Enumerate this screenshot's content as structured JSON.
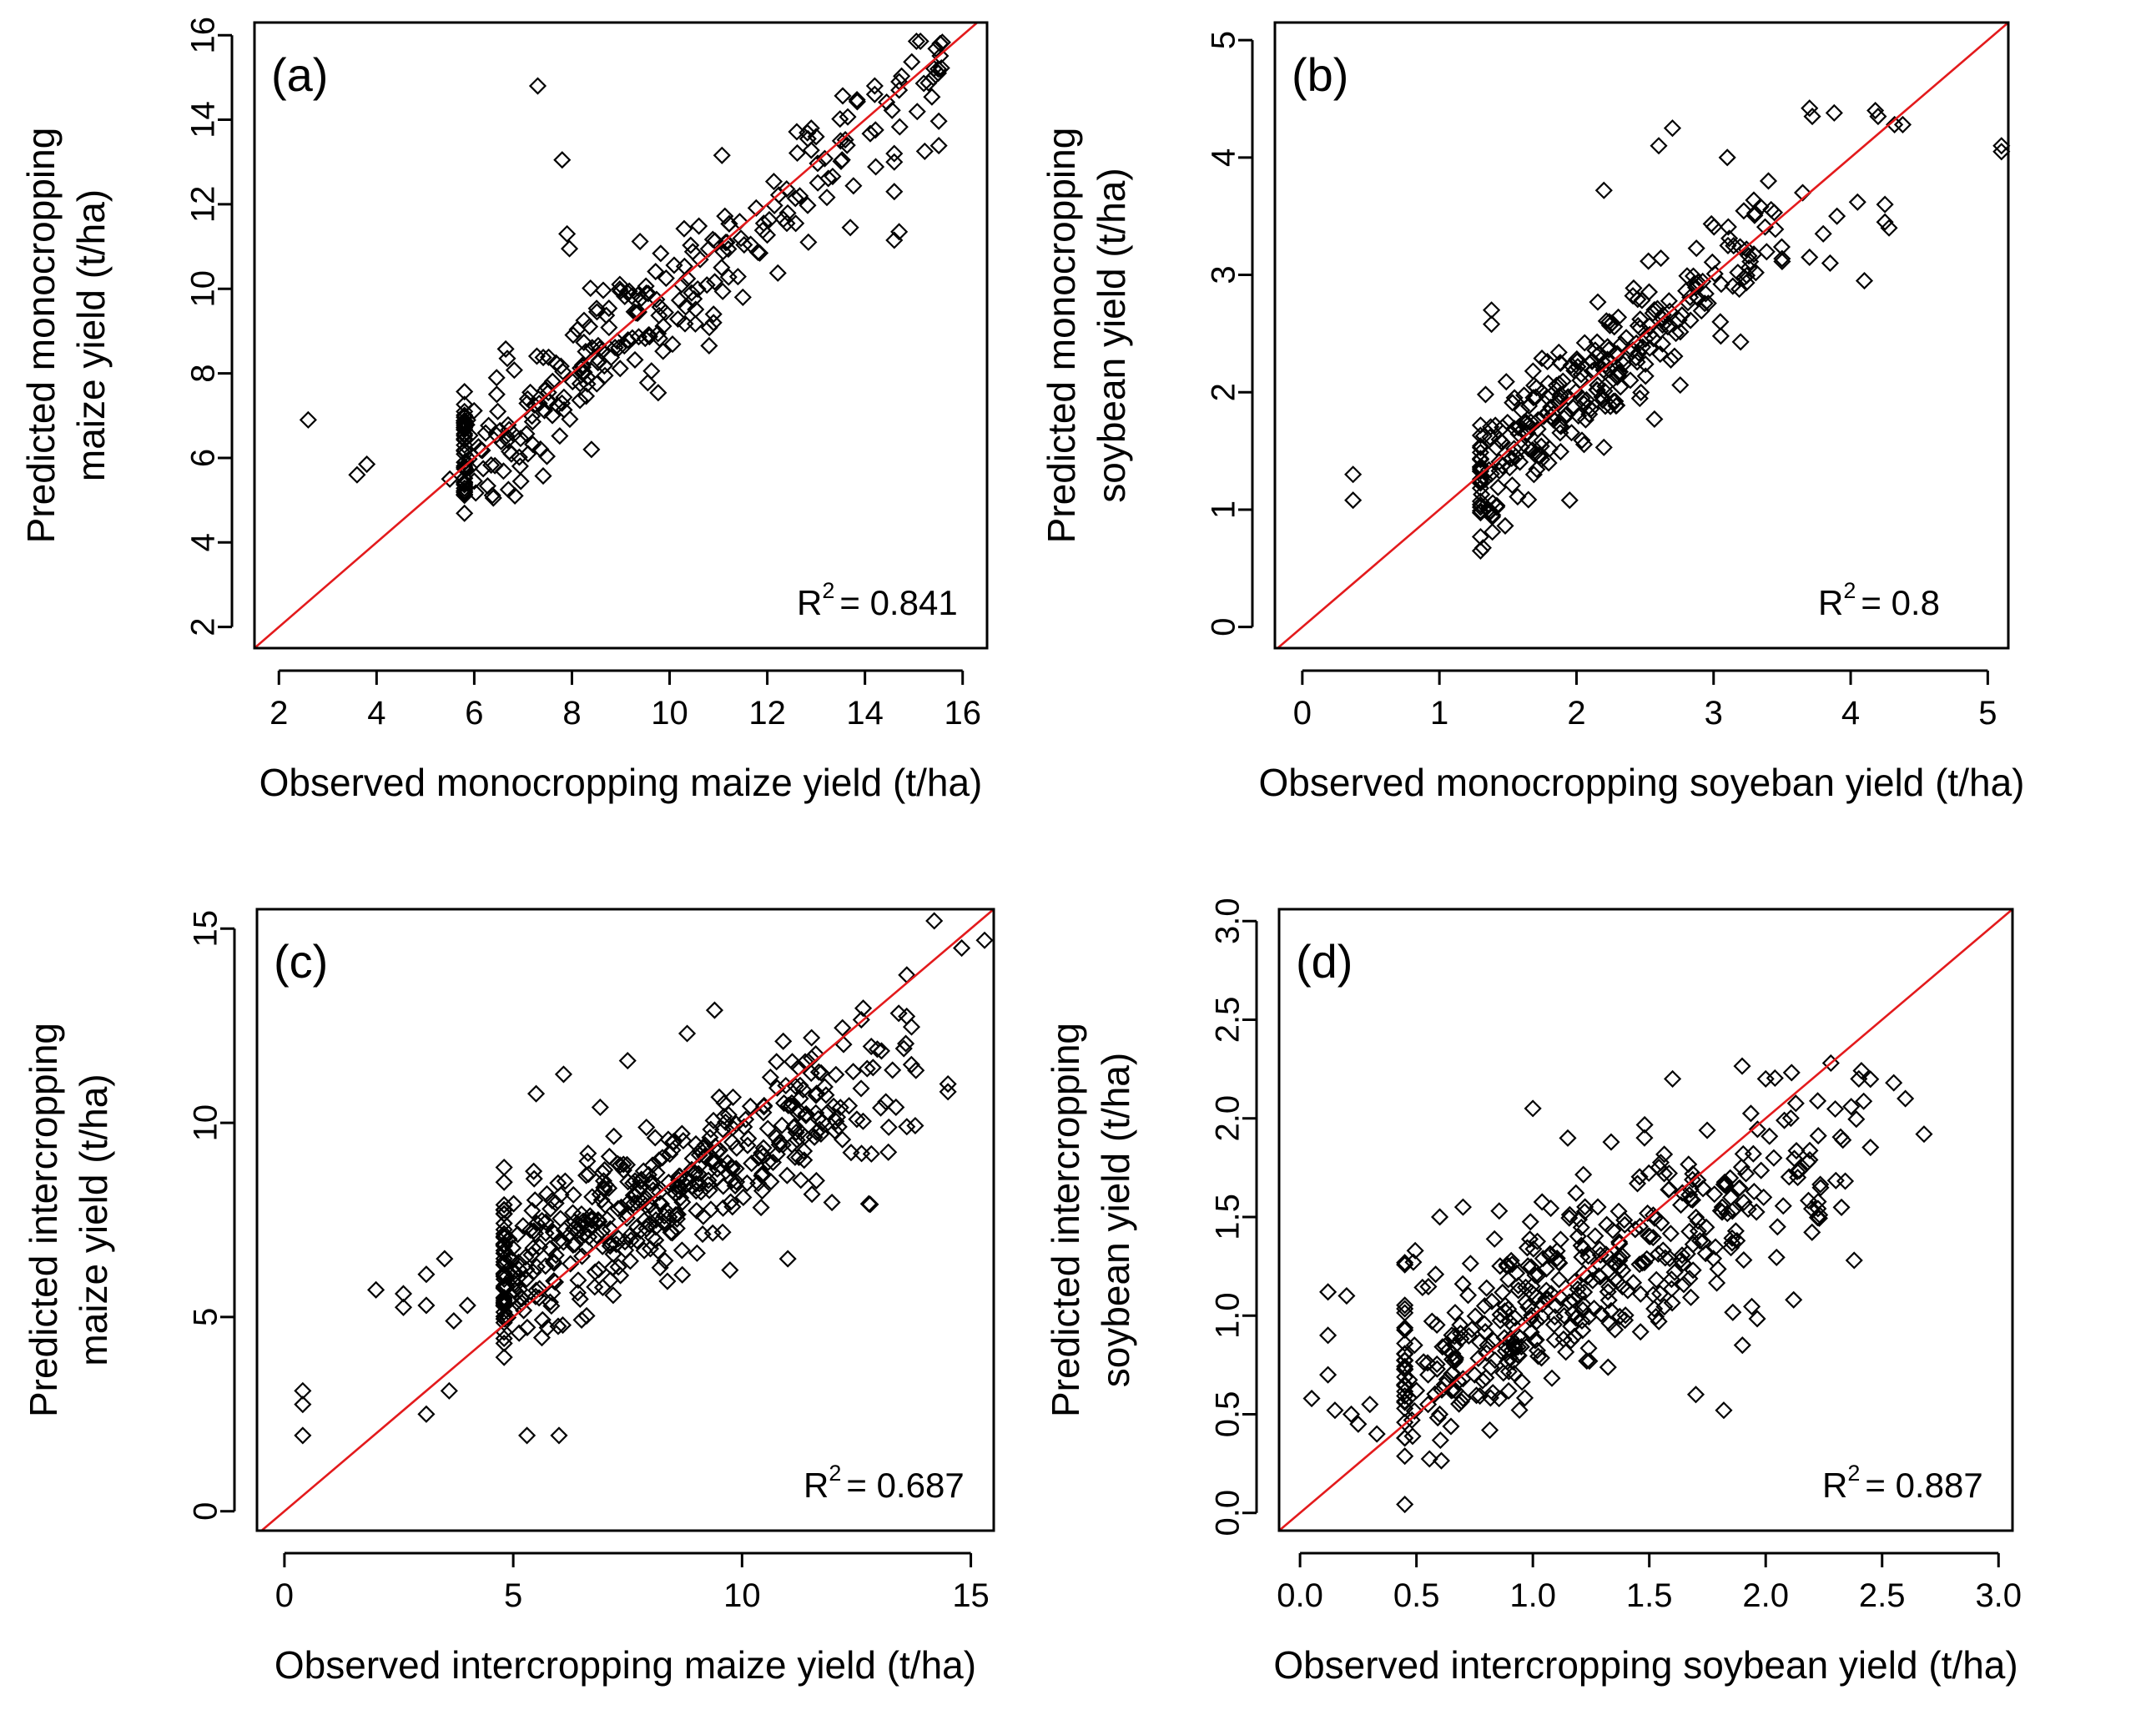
{
  "chart_data": [
    {
      "type": "scatter",
      "panel_label": "(a)",
      "xlabel": "Observed monocropping maize yield (t/ha)",
      "ylabel": [
        "Predicted monocropping",
        "maize yield (t/ha)"
      ],
      "xlim": [
        1.5,
        16.5
      ],
      "ylim": [
        1.5,
        16.3
      ],
      "xticks": [
        2,
        4,
        6,
        8,
        10,
        12,
        14,
        16
      ],
      "yticks": [
        2,
        4,
        6,
        8,
        10,
        12,
        14,
        16
      ],
      "xtick_labels": [
        "2",
        "4",
        "6",
        "8",
        "10",
        "12",
        "14",
        "16"
      ],
      "ytick_labels": [
        "2",
        "4",
        "6",
        "8",
        "10",
        "12",
        "14",
        "16"
      ],
      "r2_text": "R",
      "r2_sup": "2",
      "r2_value": "= 0.841",
      "cloud": {
        "seed": 11,
        "n": 300,
        "xmin": 5.8,
        "xmax": 15.6,
        "xmode": 8.2,
        "slope": 0.96,
        "intercept": 0.35,
        "sd": 0.75
      },
      "points": [
        [
          2.6,
          6.9
        ],
        [
          3.6,
          5.6
        ],
        [
          3.8,
          5.85
        ],
        [
          7.3,
          14.8
        ],
        [
          7.8,
          13.05
        ],
        [
          7.9,
          11.3
        ],
        [
          7.95,
          10.95
        ],
        [
          5.5,
          5.5
        ],
        [
          6.0,
          5.45
        ],
        [
          6.7,
          5.25
        ],
        [
          8.4,
          6.2
        ],
        [
          13.7,
          11.45
        ],
        [
          14.6,
          11.15
        ],
        [
          14.7,
          11.35
        ],
        [
          14.6,
          12.3
        ],
        [
          14.6,
          13.0
        ],
        [
          14.6,
          13.2
        ],
        [
          14.2,
          14.6
        ],
        [
          14.2,
          14.8
        ],
        [
          14.7,
          14.7
        ],
        [
          14.7,
          14.9
        ],
        [
          15.4,
          15.0
        ],
        [
          15.5,
          15.2
        ],
        [
          15.5,
          15.1
        ],
        [
          12.9,
          13.8
        ],
        [
          13.0,
          13.6
        ],
        [
          13.5,
          13.5
        ],
        [
          10.9,
          9.2
        ],
        [
          10.9,
          9.4
        ],
        [
          11.5,
          9.8
        ]
      ]
    },
    {
      "type": "scatter",
      "panel_label": "(b)",
      "xlabel": "Observed monocropping soyeban yield (t/ha)",
      "ylabel": [
        "Predicted monocropping",
        "soybean yield (t/ha)"
      ],
      "xlim": [
        -0.2,
        5.15
      ],
      "ylim": [
        -0.18,
        5.15
      ],
      "xticks": [
        0,
        1,
        2,
        3,
        4,
        5
      ],
      "yticks": [
        0,
        1,
        2,
        3,
        4,
        5
      ],
      "xtick_labels": [
        "0",
        "1",
        "2",
        "3",
        "4",
        "5"
      ],
      "ytick_labels": [
        "0",
        "1",
        "2",
        "3",
        "4",
        "5"
      ],
      "r2_text": "R",
      "r2_sup": "2",
      "r2_value": "= 0.8",
      "cloud": {
        "seed": 23,
        "n": 300,
        "xmin": 1.3,
        "xmax": 3.5,
        "xmode": 1.9,
        "slope": 0.97,
        "intercept": 0.05,
        "sd": 0.26
      },
      "points": [
        [
          0.37,
          1.3
        ],
        [
          0.37,
          1.08
        ],
        [
          1.37,
          0.98
        ],
        [
          1.95,
          1.08
        ],
        [
          1.38,
          2.7
        ],
        [
          1.38,
          2.58
        ],
        [
          2.2,
          3.72
        ],
        [
          2.7,
          4.25
        ],
        [
          2.6,
          4.1
        ],
        [
          3.7,
          4.42
        ],
        [
          3.72,
          4.35
        ],
        [
          3.88,
          4.38
        ],
        [
          4.18,
          4.4
        ],
        [
          4.2,
          4.35
        ],
        [
          4.32,
          4.28
        ],
        [
          4.38,
          4.28
        ],
        [
          5.1,
          4.1
        ],
        [
          5.1,
          4.05
        ],
        [
          3.65,
          3.7
        ],
        [
          3.7,
          3.15
        ],
        [
          3.85,
          3.1
        ],
        [
          4.1,
          2.95
        ],
        [
          4.25,
          3.6
        ],
        [
          4.25,
          3.45
        ],
        [
          4.28,
          3.4
        ],
        [
          4.05,
          3.62
        ],
        [
          3.8,
          3.35
        ],
        [
          3.9,
          3.5
        ],
        [
          3.4,
          3.8
        ],
        [
          3.1,
          4.0
        ]
      ]
    },
    {
      "type": "scatter",
      "panel_label": "(c)",
      "xlabel": "Observed intercropping maize yield (t/ha)",
      "ylabel": [
        "Predicted intercropping",
        "maize yield (t/ha)"
      ],
      "xlim": [
        -0.6,
        15.5
      ],
      "ylim": [
        -0.5,
        15.5
      ],
      "xticks": [
        0,
        5,
        10,
        15
      ],
      "yticks": [
        0,
        5,
        10,
        15
      ],
      "xtick_labels": [
        "0",
        "5",
        "10",
        "15"
      ],
      "ytick_labels": [
        "0",
        "5",
        "10",
        "15"
      ],
      "r2_text": "R",
      "r2_sup": "2",
      "r2_value": "= 0.687",
      "cloud": {
        "seed": 37,
        "n": 480,
        "xmin": 4.8,
        "xmax": 13.8,
        "xmode": 7.6,
        "slope": 0.62,
        "intercept": 3.1,
        "sd": 1.0
      },
      "points": [
        [
          0.4,
          3.1
        ],
        [
          0.4,
          2.75
        ],
        [
          0.4,
          1.95
        ],
        [
          2.0,
          5.7
        ],
        [
          2.6,
          5.6
        ],
        [
          2.6,
          5.25
        ],
        [
          3.1,
          6.1
        ],
        [
          3.5,
          6.5
        ],
        [
          3.1,
          5.3
        ],
        [
          3.1,
          2.5
        ],
        [
          3.6,
          3.1
        ],
        [
          3.7,
          4.9
        ],
        [
          4.0,
          5.3
        ],
        [
          5.3,
          1.95
        ],
        [
          6.0,
          1.95
        ],
        [
          5.5,
          10.75
        ],
        [
          6.1,
          11.25
        ],
        [
          6.9,
          10.4
        ],
        [
          7.5,
          11.6
        ],
        [
          8.8,
          12.3
        ],
        [
          9.4,
          12.9
        ],
        [
          10.9,
          12.1
        ],
        [
          14.2,
          15.2
        ],
        [
          14.8,
          14.5
        ],
        [
          15.3,
          14.7
        ],
        [
          14.5,
          11.0
        ],
        [
          14.5,
          10.8
        ],
        [
          13.6,
          9.9
        ],
        [
          12.8,
          7.9
        ],
        [
          11.0,
          6.5
        ]
      ]
    },
    {
      "type": "scatter",
      "panel_label": "(d)",
      "xlabel": "Observed intercropping soybean yield (t/ha)",
      "ylabel": [
        "Predicted intercropping",
        "soybean yield (t/ha)"
      ],
      "xlim": [
        -0.09,
        3.06
      ],
      "ylim": [
        -0.09,
        3.06
      ],
      "xticks": [
        0.0,
        0.5,
        1.0,
        1.5,
        2.0,
        2.5,
        3.0
      ],
      "yticks": [
        0.0,
        0.5,
        1.0,
        1.5,
        2.0,
        2.5,
        3.0
      ],
      "xtick_labels": [
        "0.0",
        "0.5",
        "1.0",
        "1.5",
        "2.0",
        "2.5",
        "3.0"
      ],
      "ytick_labels": [
        "0.0",
        "0.5",
        "1.0",
        "1.5",
        "2.0",
        "2.5",
        "3.0"
      ],
      "r2_text": "R",
      "r2_sup": "2",
      "r2_value": "= 0.887",
      "cloud": {
        "seed": 53,
        "n": 430,
        "xmin": 0.45,
        "xmax": 2.45,
        "xmode": 1.1,
        "slope": 0.62,
        "intercept": 0.42,
        "sd": 0.23
      },
      "points": [
        [
          0.05,
          0.58
        ],
        [
          0.12,
          1.12
        ],
        [
          0.12,
          0.9
        ],
        [
          0.12,
          0.7
        ],
        [
          0.15,
          0.52
        ],
        [
          0.2,
          1.1
        ],
        [
          0.22,
          0.5
        ],
        [
          0.25,
          0.45
        ],
        [
          0.3,
          0.55
        ],
        [
          0.33,
          0.4
        ],
        [
          0.45,
          0.38
        ],
        [
          0.5,
          0.62
        ],
        [
          0.55,
          0.55
        ],
        [
          0.6,
          0.5
        ],
        [
          0.62,
          0.65
        ],
        [
          0.7,
          0.58
        ],
        [
          0.75,
          0.7
        ],
        [
          0.55,
          0.7
        ],
        [
          0.65,
          0.62
        ],
        [
          0.7,
          0.68
        ],
        [
          0.6,
          1.5
        ],
        [
          0.7,
          1.55
        ],
        [
          1.0,
          2.05
        ],
        [
          1.15,
          1.9
        ],
        [
          1.6,
          2.2
        ],
        [
          2.0,
          2.2
        ],
        [
          2.28,
          2.28
        ],
        [
          2.4,
          2.2
        ],
        [
          2.55,
          2.18
        ],
        [
          2.6,
          2.1
        ],
        [
          2.68,
          1.92
        ],
        [
          2.38,
          1.28
        ],
        [
          2.12,
          1.08
        ],
        [
          1.82,
          0.52
        ],
        [
          1.7,
          0.6
        ],
        [
          1.9,
          0.85
        ]
      ]
    }
  ]
}
